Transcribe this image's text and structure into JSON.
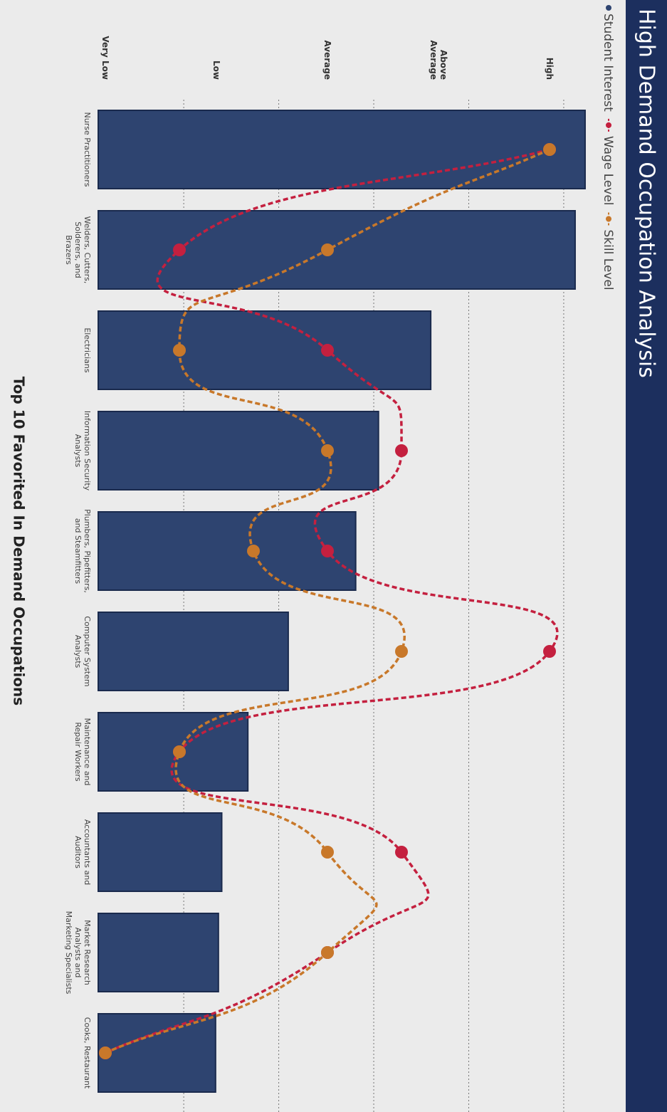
{
  "chart_data": {
    "type": "bar",
    "title": "High Demand Occupation Analysis",
    "x_label": "Top 10 Favorited In Demand Occupations",
    "categories": [
      "Nurse Practitioners",
      "Welders, Cutters, Solderers, and Brazers",
      "Electricians",
      "Information Security Analysts",
      "Plumbers, Pipefitters, and Steamfitters",
      "Computer System Analysts",
      "Maintenance and Repair Workers",
      "Accountants and Auditors",
      "Market Research Analysts and Marketing Specialists",
      "Cooks, Restaurant"
    ],
    "series": [
      {
        "name": "Student Interest",
        "color": "#2e4470",
        "values": [
          102.5,
          100.4,
          70,
          59,
          54.2,
          40,
          31.5,
          26,
          25.3,
          24.7
        ]
      },
      {
        "name": "Wage Level",
        "color": "#c4203f",
        "axis": "y2",
        "values": [
          6,
          1,
          3,
          4,
          3,
          6,
          1,
          4,
          3,
          0
        ]
      },
      {
        "name": "Skill Level",
        "color": "#c8782a",
        "axis": "y2",
        "values": [
          6,
          3,
          1,
          3,
          2,
          4,
          1,
          3,
          3,
          0
        ]
      }
    ],
    "ylim": [
      0,
      110
    ],
    "yticks": [
      18,
      38,
      58,
      78,
      98
    ],
    "grid": true,
    "y2lim": [
      0,
      7
    ],
    "y2ticks": [
      {
        "value": 0,
        "label": "Very Low"
      },
      {
        "value": 1.5,
        "label": "Low"
      },
      {
        "value": 3,
        "label": "Average"
      },
      {
        "value": 4.5,
        "label": "Above Average"
      },
      {
        "value": 6,
        "label": "High"
      }
    ],
    "legend": "top-left"
  }
}
